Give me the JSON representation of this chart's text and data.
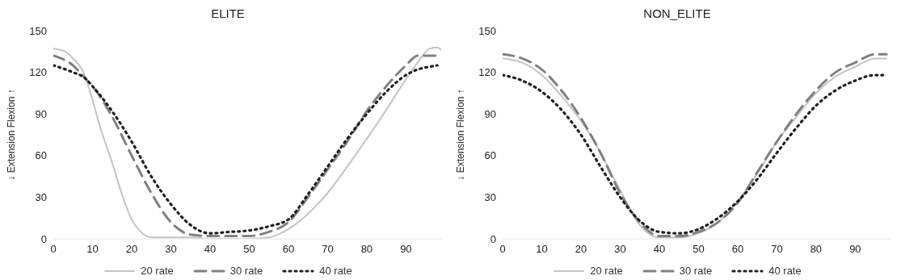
{
  "chart_data": [
    {
      "type": "line",
      "title": "ELITE",
      "ylabel": "↓ Extension          Flexion ↑",
      "x": [
        0,
        5,
        8,
        10,
        15,
        20,
        25,
        30,
        35,
        40,
        45,
        50,
        55,
        60,
        65,
        70,
        75,
        80,
        85,
        90,
        93,
        96,
        98
      ],
      "xlim": [
        0,
        99
      ],
      "xticks": [
        0,
        10,
        20,
        30,
        40,
        50,
        60,
        70,
        80,
        90
      ],
      "ylim": [
        0,
        150
      ],
      "yticks": [
        0,
        30,
        60,
        90,
        120,
        150
      ],
      "grid": false,
      "legend": "bottom",
      "series": [
        {
          "name": "20 rate",
          "color": "#c8c0c8",
          "line_style": "solid",
          "x": [
            0,
            3,
            5,
            8,
            10,
            12,
            15,
            18,
            20,
            22,
            25,
            30,
            35,
            40,
            45,
            50,
            55,
            58,
            60,
            65,
            70,
            75,
            80,
            85,
            90,
            93,
            96,
            98,
            99
          ],
          "values": [
            137,
            135,
            130,
            118,
            100,
            80,
            55,
            28,
            14,
            6,
            1,
            1,
            1,
            0,
            0,
            0,
            1,
            4,
            7,
            18,
            33,
            52,
            72,
            93,
            115,
            127,
            137,
            138,
            136
          ]
        },
        {
          "name": "30 rate",
          "color": "#808080",
          "line_style": "dashed",
          "values": [
            132,
            125,
            116,
            110,
            88,
            60,
            33,
            12,
            3,
            2,
            2,
            2,
            5,
            12,
            30,
            50,
            70,
            92,
            110,
            125,
            132,
            132,
            132
          ]
        },
        {
          "name": "40 rate",
          "color": "#202020",
          "line_style": "dotted",
          "values": [
            125,
            120,
            116,
            110,
            92,
            70,
            45,
            25,
            10,
            4,
            5,
            6,
            9,
            14,
            32,
            52,
            72,
            90,
            106,
            118,
            122,
            124,
            125
          ]
        }
      ]
    },
    {
      "type": "line",
      "title": "NON_ELITE",
      "ylabel": "↓ Extension          Flexion ↑",
      "x": [
        0,
        5,
        10,
        15,
        20,
        25,
        30,
        35,
        40,
        45,
        50,
        55,
        60,
        65,
        70,
        75,
        80,
        85,
        90,
        95,
        98
      ],
      "xlim": [
        0,
        99
      ],
      "xticks": [
        0,
        10,
        20,
        30,
        40,
        50,
        60,
        70,
        80,
        90
      ],
      "ylim": [
        0,
        150
      ],
      "yticks": [
        0,
        30,
        60,
        90,
        120,
        150
      ],
      "grid": false,
      "legend": "bottom",
      "series": [
        {
          "name": "20 rate",
          "color": "#c8c0c8",
          "line_style": "solid",
          "values": [
            130,
            127,
            118,
            103,
            85,
            62,
            35,
            10,
            1,
            1,
            4,
            12,
            27,
            47,
            70,
            88,
            105,
            117,
            124,
            130,
            130
          ]
        },
        {
          "name": "30 rate",
          "color": "#808080",
          "line_style": "dashed",
          "values": [
            133,
            130,
            122,
            107,
            87,
            62,
            33,
            12,
            2,
            2,
            5,
            12,
            26,
            48,
            70,
            90,
            107,
            120,
            127,
            133,
            133
          ]
        },
        {
          "name": "40 rate",
          "color": "#202020",
          "line_style": "dotted",
          "values": [
            118,
            114,
            106,
            93,
            75,
            52,
            30,
            13,
            5,
            4,
            7,
            15,
            27,
            43,
            62,
            80,
            96,
            107,
            114,
            118,
            118
          ]
        }
      ]
    }
  ]
}
